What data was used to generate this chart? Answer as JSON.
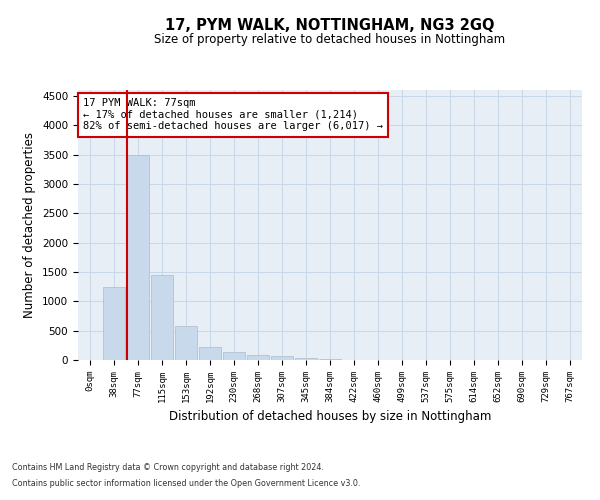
{
  "title": "17, PYM WALK, NOTTINGHAM, NG3 2GQ",
  "subtitle": "Size of property relative to detached houses in Nottingham",
  "xlabel": "Distribution of detached houses by size in Nottingham",
  "ylabel": "Number of detached properties",
  "footer_line1": "Contains HM Land Registry data © Crown copyright and database right 2024.",
  "footer_line2": "Contains public sector information licensed under the Open Government Licence v3.0.",
  "bar_labels": [
    "0sqm",
    "38sqm",
    "77sqm",
    "115sqm",
    "153sqm",
    "192sqm",
    "230sqm",
    "268sqm",
    "307sqm",
    "345sqm",
    "384sqm",
    "422sqm",
    "460sqm",
    "499sqm",
    "537sqm",
    "575sqm",
    "614sqm",
    "652sqm",
    "690sqm",
    "729sqm",
    "767sqm"
  ],
  "bar_values": [
    5,
    1250,
    3500,
    1450,
    575,
    230,
    140,
    90,
    60,
    30,
    10,
    5,
    3,
    2,
    2,
    2,
    2,
    2,
    2,
    2,
    2
  ],
  "bar_color": "#c9d9ec",
  "bar_edgecolor": "#aabbcc",
  "red_line_index": 2,
  "annotation_title": "17 PYM WALK: 77sqm",
  "annotation_line1": "← 17% of detached houses are smaller (1,214)",
  "annotation_line2": "82% of semi-detached houses are larger (6,017) →",
  "annotation_box_color": "#ffffff",
  "annotation_border_color": "#cc0000",
  "red_line_color": "#cc0000",
  "grid_color": "#c8d8e8",
  "background_color": "#e8eef6",
  "ylim": [
    0,
    4600
  ],
  "yticks": [
    0,
    500,
    1000,
    1500,
    2000,
    2500,
    3000,
    3500,
    4000,
    4500
  ]
}
